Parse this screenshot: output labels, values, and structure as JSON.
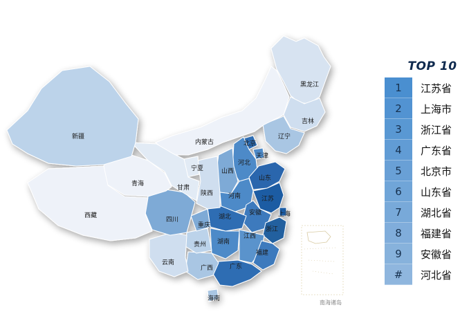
{
  "top10": {
    "title": "TOP 10",
    "items": [
      {
        "rank": "1",
        "name": "江苏省"
      },
      {
        "rank": "2",
        "name": "上海市"
      },
      {
        "rank": "3",
        "name": "浙江省"
      },
      {
        "rank": "4",
        "name": "广东省"
      },
      {
        "rank": "5",
        "name": "北京市"
      },
      {
        "rank": "6",
        "name": "山东省"
      },
      {
        "rank": "7",
        "name": "湖北省"
      },
      {
        "rank": "8",
        "name": "福建省"
      },
      {
        "rank": "9",
        "name": "安徽省"
      },
      {
        "rank": "#",
        "name": "河北省"
      }
    ]
  },
  "map": {
    "labels": {
      "heilongjiang": "黑龙江",
      "jilin": "吉林",
      "liaoning": "辽宁",
      "neimenggu": "内蒙古",
      "beijing": "北京",
      "tianjin": "天津",
      "hebei": "河北",
      "shanxi": "山西",
      "shandong": "山东",
      "henan": "河南",
      "jiangsu": "江苏",
      "shanghai": "上海",
      "anhui": "安徽",
      "zhejiang": "浙江",
      "hubei": "湖北",
      "hunan": "湖南",
      "jiangxi": "江西",
      "fujian": "福建",
      "guangdong": "广东",
      "guangxi": "广西",
      "hainan": "海南",
      "yunnan": "云南",
      "guizhou": "贵州",
      "chongqing": "重庆",
      "sichuan": "四川",
      "shaanxi": "陕西",
      "gansu": "甘肃",
      "ningxia": "宁夏",
      "qinghai": "青海",
      "xinjiang": "新疆",
      "xizang": "西藏",
      "nanhai": "南海诸岛"
    }
  },
  "colors": {
    "lightest": "#eef2f9",
    "light": "#d7e3f1",
    "mid_light": "#a9c6e3",
    "mid": "#7eaad6",
    "mid_dark": "#4d8ac8",
    "dark": "#2f6db3",
    "darkest": "#1f5ca3",
    "legend_top": "#4a8fd0",
    "legend_bottom": "#8fb6de"
  }
}
